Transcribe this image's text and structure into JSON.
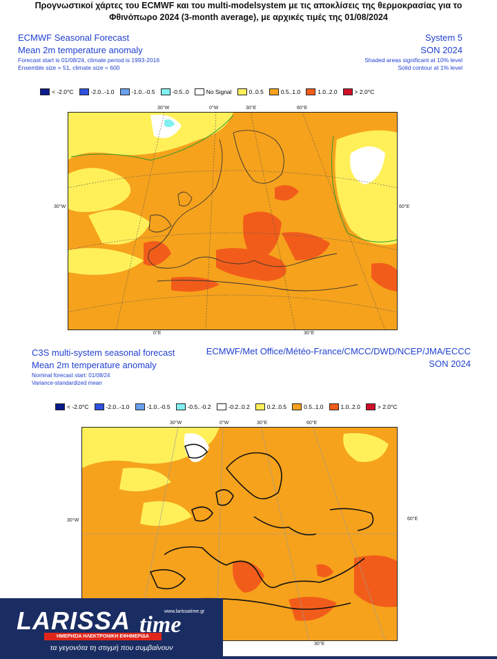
{
  "headline": {
    "line1": "Προγνωστικοί χάρτες του ECMWF και του multi-modelsystem με τις αποκλίσεις της θερμοκρασίας για το",
    "line2": "Φθινόπωρο 2024 (3-month average), με αρχικές τιμές της 01/08/2024"
  },
  "panel1": {
    "title": "ECMWF Seasonal Forecast",
    "subtitle": "Mean 2m temperature anomaly",
    "info1": "Forecast start is 01/08/24, climate period is 1993-2016",
    "info2": "Ensemble size = 51, climate size = 600",
    "system": "System 5",
    "season": "SON 2024",
    "note1": "Shaded areas significant at 10% level",
    "note2": "Solid contour at 1% level",
    "legend": [
      {
        "label": "< -2.0°C",
        "color": "#0a1a8c"
      },
      {
        "label": "-2.0..-1.0",
        "color": "#3050e0"
      },
      {
        "label": "-1.0..-0.5",
        "color": "#6aa0ee"
      },
      {
        "label": "-0.5..0",
        "color": "#80f0f0"
      },
      {
        "label": "No Signal",
        "color": "#ffffff"
      },
      {
        "label": "0..0.5",
        "color": "#fff05a"
      },
      {
        "label": "0.5..1.0",
        "color": "#f6a21c"
      },
      {
        "label": "1.0..2.0",
        "color": "#f25c1a"
      },
      {
        "label": "> 2.0°C",
        "color": "#d0102a"
      }
    ],
    "ticks": {
      "lon_30w": "30°W",
      "lon_0": "0°W",
      "lon_30e": "30°E",
      "lon_60e": "60°E",
      "left_30w": "30°W",
      "right_60e": "60°E",
      "bottom_0": "0°E",
      "bottom_30e": "30°E"
    }
  },
  "panel2": {
    "title": "C3S multi-system seasonal forecast",
    "subtitle": "Mean 2m temperature anomaly",
    "info1": "Nominal forecast start: 01/08/24",
    "info2": "Variance-standardized mean",
    "systems": "ECMWF/Met Office/Météo-France/CMCC/DWD/NCEP/JMA/ECCC",
    "season": "SON 2024",
    "legend": [
      {
        "label": "< -2.0°C",
        "color": "#0a1a8c"
      },
      {
        "label": "-2.0..-1.0",
        "color": "#3050e0"
      },
      {
        "label": "-1.0..-0.5",
        "color": "#6aa0ee"
      },
      {
        "label": "-0.5..-0.2",
        "color": "#80f0f0"
      },
      {
        "label": "-0.2..0.2",
        "color": "#ffffff"
      },
      {
        "label": "0.2..0.5",
        "color": "#fff05a"
      },
      {
        "label": "0.5..1.0",
        "color": "#f6a21c"
      },
      {
        "label": "1.0..2.0",
        "color": "#f25c1a"
      },
      {
        "label": "> 2.0°C",
        "color": "#d0102a"
      }
    ],
    "ticks": {
      "lon_30w": "30°W",
      "lon_0": "0°W",
      "lon_30e": "30°E",
      "lon_60e": "60°E",
      "left_30w": "30°W",
      "right_60e": "60°E",
      "bottom_30e": "30°E"
    }
  },
  "brand": {
    "name_main": "LARISSA",
    "name_time": "time",
    "url": "www.larissatime.gr",
    "bar_text": "ΗΜΕΡΗΣΙΑ ΗΛΕΚΤΡΟΝΙΚΗ ΕΦΗΜΕΡΙΔΑ",
    "tagline": "τα γεγονότα τη στιγμή που συμβαίνουν"
  }
}
